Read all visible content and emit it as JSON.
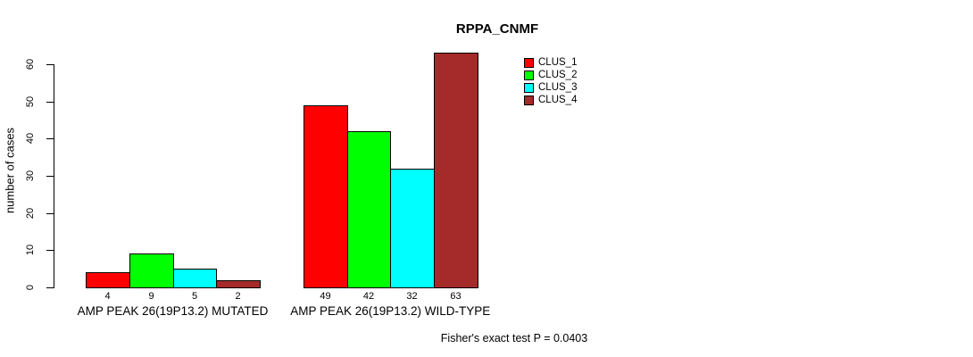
{
  "chart_data": {
    "type": "bar",
    "title": "RPPA_CNMF",
    "ylabel": "number of cases",
    "xlabel": "",
    "ylim": [
      0,
      63
    ],
    "yticks": [
      0,
      10,
      20,
      30,
      40,
      50,
      60
    ],
    "grid": false,
    "legend_position": "top-right",
    "background_color": "#FFFFFF",
    "axis_color": "#000000",
    "text_color": "#000000",
    "categories": [
      "AMP PEAK 26(19P13.2) MUTATED",
      "AMP PEAK 26(19P13.2) WILD-TYPE"
    ],
    "series": [
      {
        "name": "CLUS_1",
        "color": "#FF0000",
        "values": [
          4,
          49
        ]
      },
      {
        "name": "CLUS_2",
        "color": "#00FF00",
        "values": [
          9,
          42
        ]
      },
      {
        "name": "CLUS_3",
        "color": "#00FFFF",
        "values": [
          5,
          32
        ]
      },
      {
        "name": "CLUS_4",
        "color": "#A52A2A",
        "values": [
          2,
          63
        ]
      }
    ],
    "bar_value_labels_shown": true,
    "annotation": "Fisher's exact test P = 0.0403"
  }
}
